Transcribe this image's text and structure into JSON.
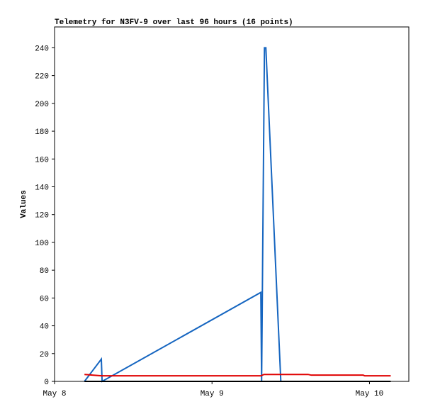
{
  "chart_data": {
    "type": "line",
    "title": "Telemetry for N3FV-9 over last 96 hours (16 points)",
    "y_label": "Values",
    "xlim": [
      0,
      2.25
    ],
    "xticks": [
      {
        "value": 0,
        "label": "May 8"
      },
      {
        "value": 1,
        "label": "May 9"
      },
      {
        "value": 2,
        "label": "May 10"
      }
    ],
    "ylim": [
      0,
      255
    ],
    "yticks": [
      0,
      20,
      40,
      60,
      80,
      100,
      120,
      140,
      160,
      180,
      200,
      220,
      240
    ],
    "series": [
      {
        "color": "#1565c0",
        "x": [
          0.19,
          0.297,
          0.302,
          1.31,
          1.315,
          1.333,
          1.342,
          1.437
        ],
        "values": [
          0,
          16,
          0,
          64,
          0,
          240,
          240,
          0
        ]
      },
      {
        "color": "#e00000",
        "x": [
          0.19,
          0.3,
          1.31,
          1.33,
          1.61,
          1.63,
          1.96,
          1.97,
          2.135
        ],
        "values": [
          5,
          4,
          4,
          5,
          5,
          4.5,
          4.5,
          4,
          4
        ]
      },
      {
        "color": "#000000",
        "x": [
          0.19,
          2.135
        ],
        "values": [
          0,
          0
        ]
      }
    ]
  }
}
